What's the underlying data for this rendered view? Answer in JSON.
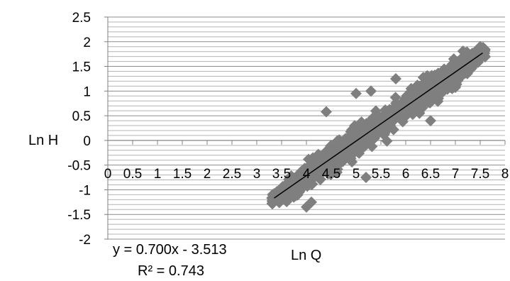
{
  "chart_data": {
    "type": "scatter",
    "title": "",
    "xlabel": "Ln Q",
    "ylabel": "Ln H",
    "xlim": [
      0,
      8
    ],
    "ylim": [
      -2,
      2.5
    ],
    "x_ticks": [
      "0",
      "0.5",
      "1",
      "1.5",
      "2",
      "2.5",
      "3",
      "3.5",
      "4",
      "4.5",
      "5",
      "5.5",
      "6",
      "6.5",
      "7",
      "7.5",
      "8"
    ],
    "y_ticks": [
      "2.5",
      "2",
      "1.5",
      "1",
      "0.5",
      "0",
      "-0.5",
      "-1",
      "-1.5",
      "-2"
    ],
    "x_tick_values": [
      0,
      0.5,
      1,
      1.5,
      2,
      2.5,
      3,
      3.5,
      4,
      4.5,
      5,
      5.5,
      6,
      6.5,
      7,
      7.5,
      8
    ],
    "y_tick_values": [
      2.5,
      2,
      1.5,
      1,
      0.5,
      0,
      -0.5,
      -1,
      -1.5,
      -2
    ],
    "grid": true,
    "minor_grid_step": 0.1,
    "marker": "diamond",
    "marker_color": "#7f7f7f",
    "trendline": {
      "type": "linear",
      "slope": 0.7,
      "intercept": -3.513,
      "x_range": [
        3.35,
        7.55
      ],
      "color": "#000000",
      "equation": "y = 0.700x - 3.513",
      "r_squared": "R² = 0.743"
    },
    "cloud": {
      "x_range": [
        3.3,
        7.6
      ],
      "residual_spread": 0.24,
      "approx_count": 900
    },
    "outliers": [
      {
        "x": 3.6,
        "y": -1.2
      },
      {
        "x": 4.0,
        "y": -1.35
      },
      {
        "x": 4.1,
        "y": -1.25
      },
      {
        "x": 4.4,
        "y": 0.58
      },
      {
        "x": 5.0,
        "y": 0.95
      },
      {
        "x": 5.2,
        "y": -0.75
      },
      {
        "x": 5.3,
        "y": 1.0
      },
      {
        "x": 5.8,
        "y": 1.25
      },
      {
        "x": 6.5,
        "y": 0.4
      },
      {
        "x": 7.0,
        "y": 1.1
      },
      {
        "x": 7.5,
        "y": 1.9
      }
    ]
  }
}
